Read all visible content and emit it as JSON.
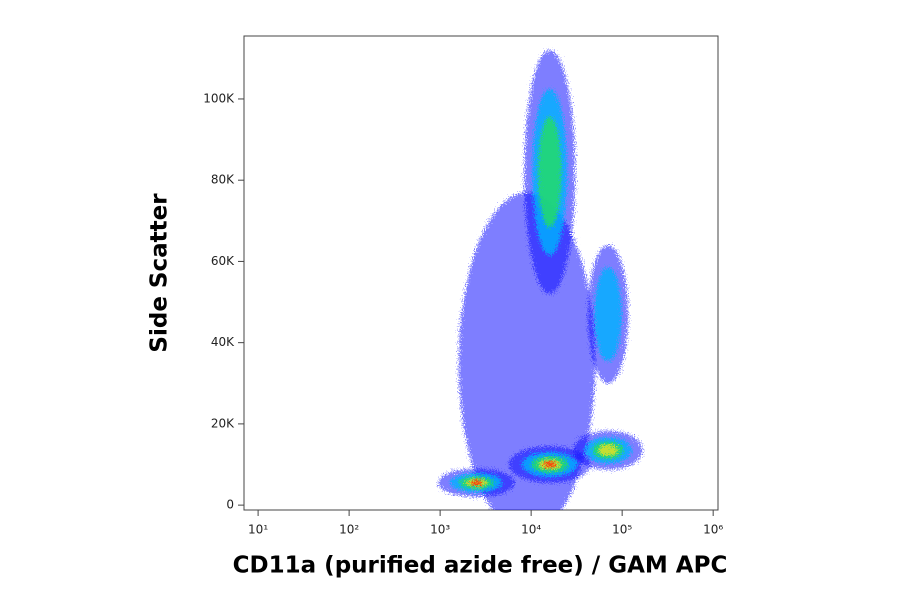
{
  "chart_data": {
    "type": "density",
    "x_label": "CD11a (purified azide free) / GAM APC",
    "y_label": "Side Scatter",
    "x_log": true,
    "xlim": [
      7,
      1130000
    ],
    "xticks": [
      {
        "value": 10,
        "label": "10¹"
      },
      {
        "value": 100,
        "label": "10²"
      },
      {
        "value": 1000,
        "label": "10³"
      },
      {
        "value": 10000,
        "label": "10⁴"
      },
      {
        "value": 100000,
        "label": "10⁵"
      },
      {
        "value": 1000000,
        "label": "10⁶"
      }
    ],
    "ylim": [
      -1200,
      115500
    ],
    "yticks": [
      0,
      {
        "value": 20000,
        "label": "20K"
      },
      {
        "value": 40000,
        "label": "40K"
      },
      {
        "value": 60000,
        "label": "60K"
      },
      {
        "value": 80000,
        "label": "80K"
      },
      {
        "value": 100000,
        "label": "100K"
      }
    ],
    "level_colors": [
      "#1010ff",
      "#00b4ff",
      "#20e060",
      "#f0e020",
      "#ff2000"
    ],
    "populations": [
      {
        "x": 9000,
        "y": 35000,
        "x_spread": 0.75,
        "y_spread": 42000,
        "levels": 1
      },
      {
        "x": 16000,
        "y": 82000,
        "x_spread": 0.28,
        "y_spread": 30000,
        "levels": 3
      },
      {
        "x": 70000,
        "y": 47000,
        "x_spread": 0.22,
        "y_spread": 17000,
        "levels": 2
      },
      {
        "x": 2500,
        "y": 5500,
        "x_spread": 0.42,
        "y_spread": 3500,
        "levels": 5
      },
      {
        "x": 16000,
        "y": 10000,
        "x_spread": 0.45,
        "y_spread": 4500,
        "levels": 5
      },
      {
        "x": 70000,
        "y": 13500,
        "x_spread": 0.38,
        "y_spread": 4800,
        "levels": 4
      }
    ]
  }
}
